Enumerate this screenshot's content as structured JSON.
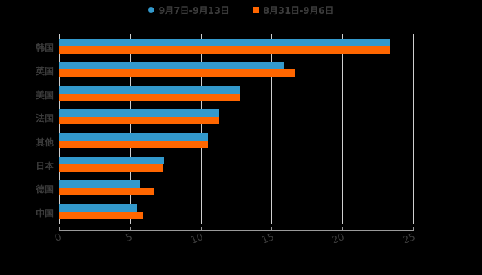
{
  "chart_data": {
    "type": "bar",
    "orientation": "horizontal",
    "title": "",
    "xlabel": "",
    "ylabel": "",
    "xlim": [
      0,
      25
    ],
    "xticks": [
      0,
      5,
      10,
      15,
      20,
      25
    ],
    "grid": true,
    "legend_position": "top",
    "categories": [
      "韩国",
      "英国",
      "美国",
      "法国",
      "其他",
      "日本",
      "德国",
      "中国"
    ],
    "series": [
      {
        "name": "9月7日-9月13日",
        "color": "#3399cc",
        "marker": "circle",
        "values": [
          23.4,
          15.9,
          12.8,
          11.3,
          10.5,
          7.4,
          5.7,
          5.5
        ]
      },
      {
        "name": "8月31日-9月6日",
        "color": "#ff6600",
        "marker": "square",
        "values": [
          23.4,
          16.7,
          12.8,
          11.3,
          10.5,
          7.3,
          6.7,
          5.9
        ]
      }
    ]
  },
  "legend": {
    "items": [
      {
        "label": "9月7日-9月13日"
      },
      {
        "label": "8月31日-9月6日"
      }
    ]
  },
  "axis": {
    "x_tick_labels": [
      "0",
      "5",
      "10",
      "15",
      "20",
      "25"
    ]
  }
}
